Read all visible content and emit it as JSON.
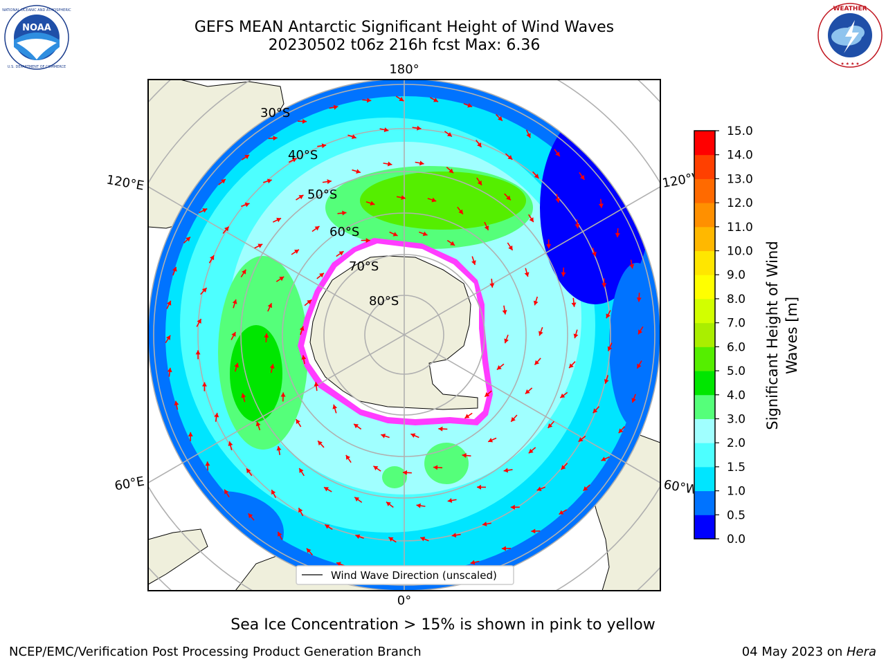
{
  "header": {
    "title_line1": "GEFS MEAN Antarctic Significant Height of Wind Waves",
    "title_line2": "20230502 t06z 216h fcst   Max: 6.36"
  },
  "logos": {
    "left": {
      "text": "NOAA",
      "ring_text": "NATIONAL OCEANIC AND ATMOSPHERIC ADMINISTRATION · U.S. DEPARTMENT OF COMMERCE"
    },
    "right": {
      "ring_text": "NATIONAL WEATHER SERVICE"
    }
  },
  "map": {
    "longitude_labels": {
      "top": "180°",
      "bottom": "0°",
      "left_upper": "120°E",
      "left_lower": "60°E",
      "right_upper": "120°W",
      "right_lower": "60°W"
    },
    "latitude_labels": [
      "30°S",
      "40°S",
      "50°S",
      "60°S",
      "70°S",
      "80°S"
    ],
    "legend": "Wind Wave Direction (unscaled)",
    "colors": {
      "land": "#efefdc",
      "ice": "#ffffff",
      "arrow": "#ff0000",
      "grid": "#b0b0b0"
    }
  },
  "colorbar": {
    "title_line1": "Significant Height of Wind",
    "title_line2": "Waves [m]",
    "ticks": [
      "0.0",
      "0.5",
      "1.0",
      "1.5",
      "2.0",
      "3.0",
      "4.0",
      "5.0",
      "6.0",
      "7.0",
      "8.0",
      "9.0",
      "10.0",
      "11.0",
      "12.0",
      "13.0",
      "14.0",
      "15.0"
    ],
    "colors": [
      "#0000ff",
      "#0073ff",
      "#00e5ff",
      "#4dffff",
      "#a0ffff",
      "#55ff7a",
      "#00e600",
      "#55ee00",
      "#aaee00",
      "#d2ff00",
      "#ffff00",
      "#ffe600",
      "#ffb800",
      "#ff9000",
      "#ff6a00",
      "#ff4000",
      "#ff0000"
    ]
  },
  "footer": {
    "ice_note": "Sea Ice Concentration > 15% is shown in pink to yellow",
    "credit_left": "NCEP/EMC/Verification Post Processing Product Generation Branch",
    "credit_date": "04 May 2023 on ",
    "credit_host": "Hera"
  }
}
